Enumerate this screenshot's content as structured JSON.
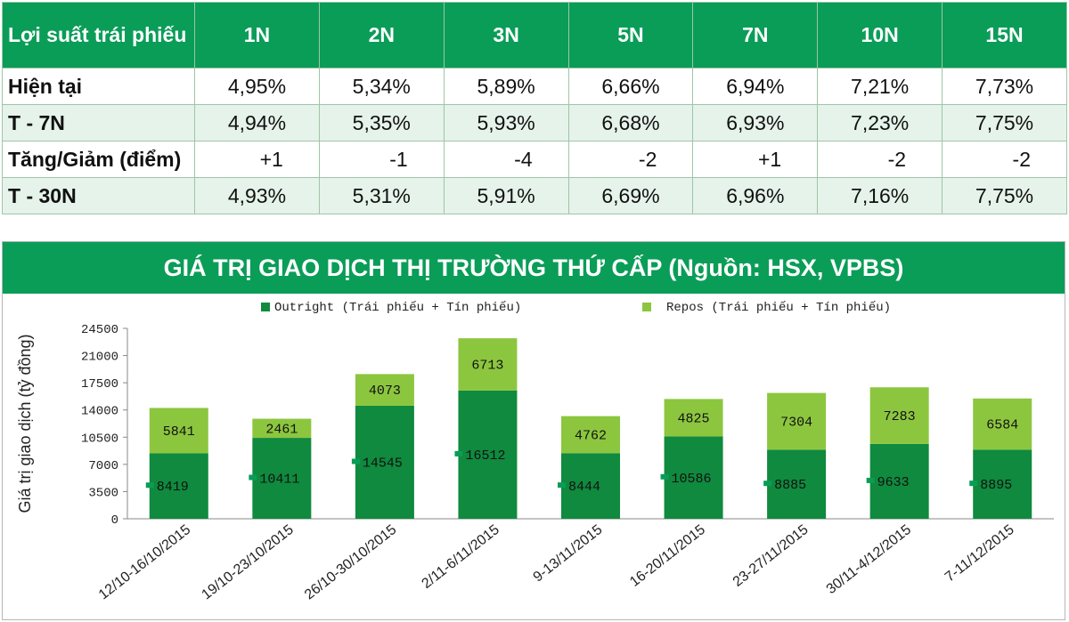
{
  "yield_table": {
    "header": [
      "Lợi suất trái phiếu",
      "1N",
      "2N",
      "3N",
      "5N",
      "7N",
      "10N",
      "15N"
    ],
    "rows": [
      {
        "label": "Hiện tại",
        "values": [
          "4,95%",
          "5,34%",
          "5,89%",
          "6,66%",
          "6,94%",
          "7,21%",
          "7,73%"
        ]
      },
      {
        "label": "T - 7N",
        "values": [
          "4,94%",
          "5,35%",
          "5,93%",
          "6,68%",
          "6,93%",
          "7,23%",
          "7,75%"
        ]
      },
      {
        "label": "Tăng/Giảm (điểm)",
        "values": [
          "+1",
          "-1",
          "-4",
          "-2",
          "+1",
          "-2",
          "-2"
        ]
      },
      {
        "label": "T - 30N",
        "values": [
          "4,93%",
          "5,31%",
          "5,91%",
          "6,69%",
          "6,96%",
          "7,16%",
          "7,75%"
        ]
      }
    ]
  },
  "colors": {
    "header_green": "#0a9d58",
    "outright": "#0f8a3e",
    "repos": "#8cc63f"
  },
  "chart_data": {
    "type": "bar",
    "stacked": true,
    "title": "GIÁ TRỊ GIAO DỊCH THỊ TRƯỜNG THỨ CẤP (Nguồn: HSX, VPBS)",
    "ylabel": "Giá trị giao dịch (tỷ đồng)",
    "xlabel": "",
    "ylim": [
      0,
      24500
    ],
    "yticks": [
      0,
      3500,
      7000,
      10500,
      14000,
      17500,
      21000,
      24500
    ],
    "legend_position": "top",
    "categories": [
      "12/10-16/10/2015",
      "19/10-23/10/2015",
      "26/10-30/10/2015",
      "2/11-6/11/2015",
      "9-13/11/2015",
      "16-20/11/2015",
      "23-27/11/2015",
      "30/11-4/12/2015",
      "7-11/12/2015"
    ],
    "series": [
      {
        "name": "Outright (Trái phiếu + Tín phiếu)",
        "values": [
          8419,
          10411,
          14545,
          16512,
          8444,
          10586,
          8885,
          9633,
          8895
        ]
      },
      {
        "name": "Repos (Trái phiếu + Tín phiếu)",
        "values": [
          5841,
          2461,
          4073,
          6713,
          4762,
          4825,
          7304,
          7283,
          6584
        ]
      }
    ]
  }
}
